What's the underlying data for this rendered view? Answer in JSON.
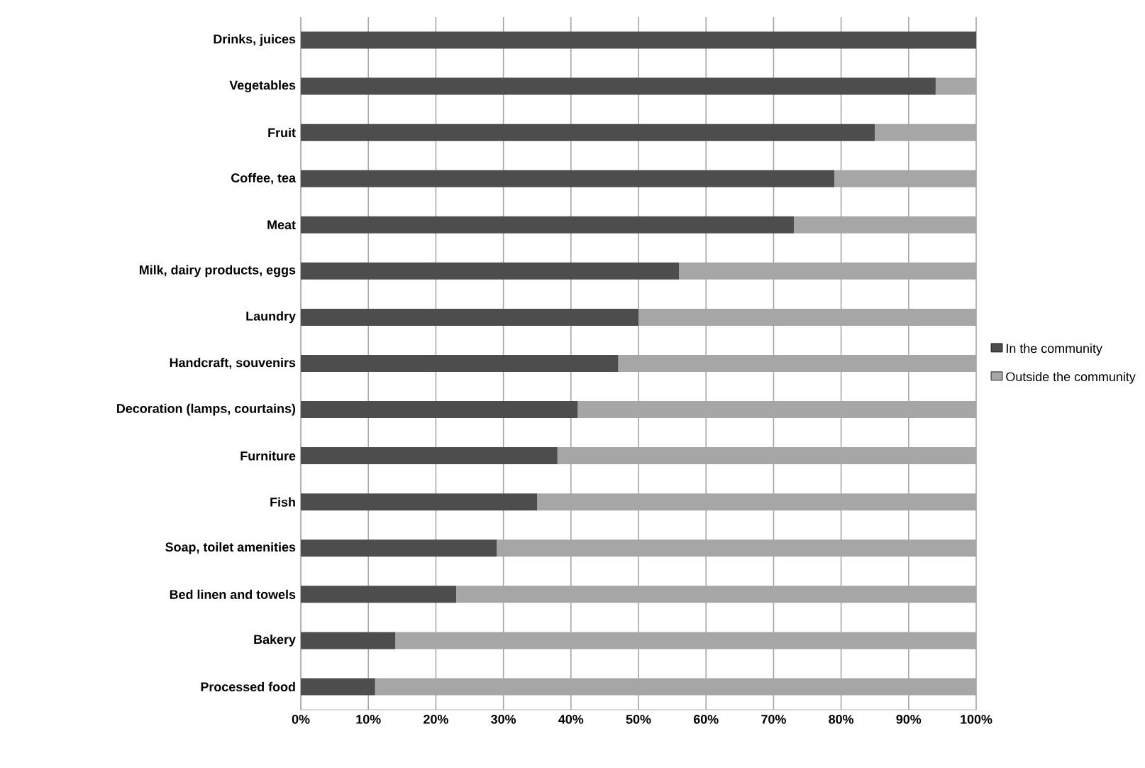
{
  "chart_data": {
    "type": "bar",
    "orientation": "horizontal",
    "stacked": true,
    "categories": [
      "Drinks, juices",
      "Vegetables",
      "Fruit",
      "Coffee, tea",
      "Meat",
      "Milk, dairy products, eggs",
      "Laundry",
      "Handcraft, souvenirs",
      "Decoration (lamps, courtains)",
      "Furniture",
      "Fish",
      "Soap, toilet amenities",
      "Bed linen and towels",
      "Bakery",
      "Processed food"
    ],
    "series": [
      {
        "name": "In the community",
        "color": "#4d4d4d",
        "values": [
          100,
          94,
          85,
          79,
          73,
          56,
          50,
          47,
          41,
          38,
          35,
          29,
          23,
          14,
          11
        ]
      },
      {
        "name": "Outside the community",
        "color": "#a6a6a6",
        "values": [
          0,
          6,
          15,
          21,
          27,
          44,
          50,
          53,
          59,
          62,
          65,
          71,
          77,
          86,
          89
        ]
      }
    ],
    "xlim": [
      0,
      100
    ],
    "xticks": [
      {
        "value": 0,
        "label": "0%"
      },
      {
        "value": 10,
        "label": "10%"
      },
      {
        "value": 20,
        "label": "20%"
      },
      {
        "value": 30,
        "label": "30%"
      },
      {
        "value": 40,
        "label": "40%"
      },
      {
        "value": 50,
        "label": "50%"
      },
      {
        "value": 60,
        "label": "60%"
      },
      {
        "value": 70,
        "label": "70%"
      },
      {
        "value": 80,
        "label": "80%"
      },
      {
        "value": 90,
        "label": "90%"
      },
      {
        "value": 100,
        "label": "100%"
      }
    ],
    "grid": "x",
    "legend": "right"
  }
}
